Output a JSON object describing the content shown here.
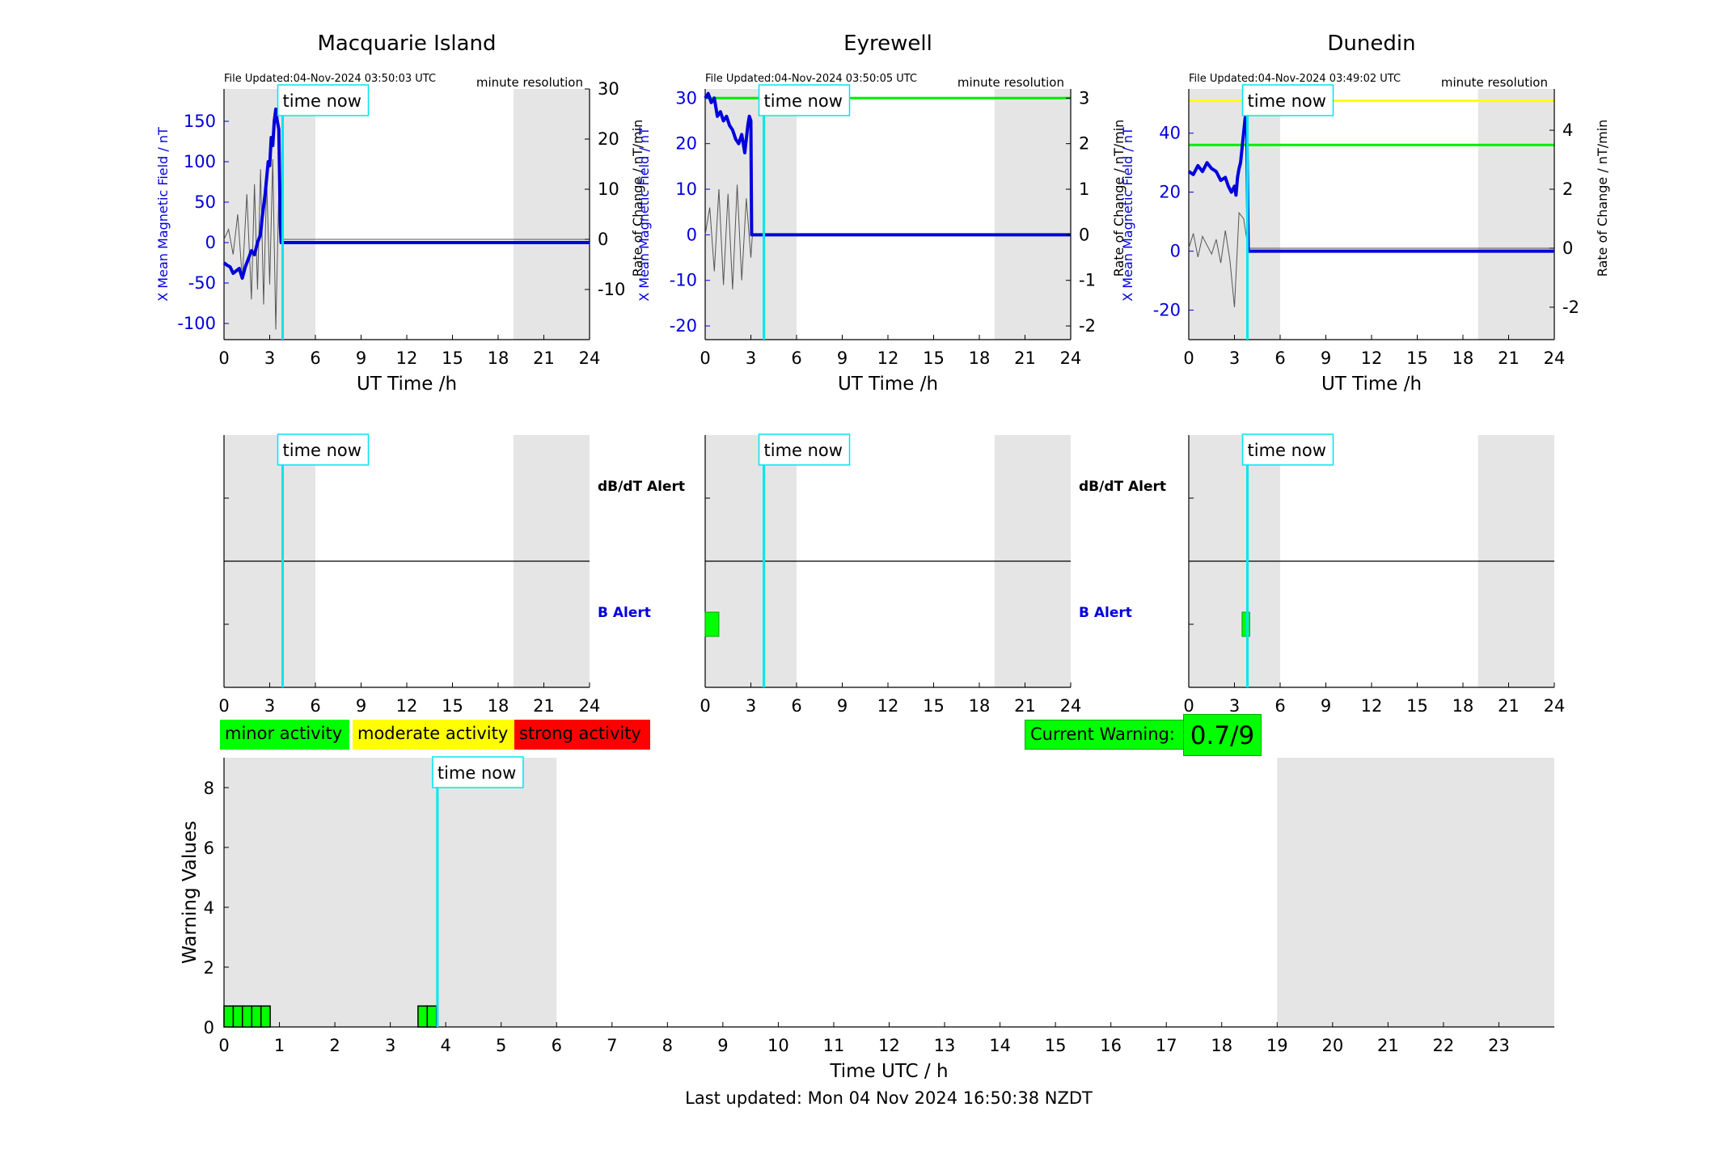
{
  "stations": [
    {
      "title": "Macquarie Island",
      "file_updated": "File Updated:04-Nov-2024 03:50:03 UTC",
      "resolution": "minute resolution",
      "ylabel": "X Mean Magnetic Field / nT",
      "y2label": "Rate of Change / nT/min",
      "xlabel": "UT Time /h",
      "time_now": "time now",
      "dbdt_alert_label": "dB/dT Alert",
      "b_alert_label": "B Alert"
    },
    {
      "title": "Eyrewell",
      "file_updated": "File Updated:04-Nov-2024 03:50:05 UTC",
      "resolution": "minute resolution",
      "ylabel": "X Mean Magnetic Field / nT",
      "y2label": "Rate of Change / nT/min",
      "xlabel": "UT Time /h",
      "time_now": "time now",
      "dbdt_alert_label": "dB/dT Alert",
      "b_alert_label": "B Alert"
    },
    {
      "title": "Dunedin",
      "file_updated": "File Updated:04-Nov-2024 03:49:02 UTC",
      "resolution": "minute resolution",
      "ylabel": "X Mean Magnetic Field / nT",
      "y2label": "Rate of Change / nT/min",
      "xlabel": "UT Time /h",
      "time_now": "time now"
    }
  ],
  "legend": {
    "minor": "minor activity",
    "moderate": "moderate activity",
    "strong": "strong activity"
  },
  "current_warning": {
    "label": "Current Warning:",
    "value": "0.7/9"
  },
  "footer": {
    "last_updated": "Last updated: Mon 04 Nov 2024 16:50:38 NZDT"
  },
  "colors": {
    "field": "#0000dd",
    "rate": "#555555",
    "now": "#00e5ee",
    "shade": "#e5e5e5",
    "minor": "#00ff00",
    "moderate": "#ffff00",
    "strong": "#ff0000",
    "threshold_green": "#00ee00",
    "threshold_yellow": "#ffff00"
  },
  "chart_data": [
    {
      "type": "line",
      "station": "Macquarie Island",
      "x_ticks": [
        0,
        3,
        6,
        9,
        12,
        15,
        18,
        21,
        24
      ],
      "xlim": [
        0,
        24
      ],
      "ylim": [
        -120,
        190
      ],
      "y_ticks": [
        -100,
        -50,
        0,
        50,
        100,
        150
      ],
      "y2lim": [
        -20,
        30
      ],
      "y2_ticks": [
        -10,
        0,
        10,
        20,
        30
      ],
      "y2_tick_labels": [
        "-10",
        "0",
        "10",
        "20",
        "30"
      ],
      "shaded_hours": [
        [
          0,
          6
        ],
        [
          19,
          24
        ]
      ],
      "time_now": 3.85,
      "thresholds": [],
      "series": [
        {
          "role": "field",
          "x": [
            0,
            0.2,
            0.4,
            0.6,
            0.8,
            1.0,
            1.2,
            1.4,
            1.6,
            1.8,
            2.0,
            2.2,
            2.4,
            2.5,
            2.7,
            2.9,
            3.0,
            3.1,
            3.2,
            3.3,
            3.4,
            3.5,
            3.6,
            3.7,
            3.75,
            3.8,
            4,
            24
          ],
          "y": [
            -25,
            -28,
            -30,
            -38,
            -35,
            -32,
            -44,
            -30,
            -20,
            -10,
            -15,
            0,
            10,
            30,
            60,
            100,
            95,
            130,
            120,
            150,
            165,
            150,
            140,
            20,
            0,
            0,
            0,
            0
          ]
        },
        {
          "role": "rate",
          "x": [
            0,
            0.3,
            0.6,
            0.9,
            1.2,
            1.5,
            1.8,
            2.0,
            2.2,
            2.4,
            2.6,
            2.8,
            3.0,
            3.2,
            3.4,
            3.6,
            3.8,
            24
          ],
          "y": [
            0,
            2,
            -3,
            5,
            -8,
            9,
            -12,
            11,
            -10,
            14,
            -13,
            12,
            -9,
            16,
            -18,
            10,
            0,
            0
          ]
        }
      ]
    },
    {
      "type": "line",
      "station": "Eyrewell",
      "x_ticks": [
        0,
        3,
        6,
        9,
        12,
        15,
        18,
        21,
        24
      ],
      "xlim": [
        0,
        24
      ],
      "ylim": [
        -23,
        32
      ],
      "y_ticks": [
        -20,
        -10,
        0,
        10,
        20,
        30
      ],
      "y2lim": [
        -2.3,
        3.2
      ],
      "y2_ticks": [
        -2,
        -1,
        0,
        1,
        2,
        3
      ],
      "y2_tick_labels": [
        "-2",
        "-1",
        "0",
        "1",
        "2",
        "3"
      ],
      "shaded_hours": [
        [
          0,
          6
        ],
        [
          19,
          24
        ]
      ],
      "time_now": 3.85,
      "thresholds": [
        {
          "axis": "y2",
          "value": 3.0,
          "color": "#00ee00"
        }
      ],
      "series": [
        {
          "role": "field",
          "x": [
            0,
            0.2,
            0.4,
            0.6,
            0.8,
            1.0,
            1.2,
            1.4,
            1.6,
            1.8,
            2.0,
            2.2,
            2.4,
            2.6,
            2.8,
            2.9,
            3.0,
            3.05,
            3.1,
            24
          ],
          "y": [
            30,
            31,
            29,
            30,
            26,
            27,
            25,
            26,
            24,
            23,
            21,
            20,
            22,
            18,
            24,
            26,
            25,
            0,
            0,
            0
          ]
        },
        {
          "role": "rate",
          "x": [
            0,
            0.3,
            0.6,
            0.9,
            1.2,
            1.5,
            1.8,
            2.1,
            2.4,
            2.7,
            3.0,
            3.1,
            24
          ],
          "y": [
            0,
            0.6,
            -0.8,
            1.0,
            -1.1,
            0.9,
            -1.2,
            1.1,
            -1.0,
            0.8,
            -0.5,
            0,
            0
          ]
        }
      ]
    },
    {
      "type": "line",
      "station": "Dunedin",
      "x_ticks": [
        0,
        3,
        6,
        9,
        12,
        15,
        18,
        21,
        24
      ],
      "xlim": [
        0,
        24
      ],
      "ylim": [
        -30,
        55
      ],
      "y_ticks": [
        -20,
        0,
        20,
        40
      ],
      "y2lim": [
        -3.1,
        5.4
      ],
      "y2_ticks": [
        -2,
        0,
        2,
        4
      ],
      "y2_tick_labels": [
        "-2",
        "0",
        "2",
        "4"
      ],
      "shaded_hours": [
        [
          0,
          6
        ],
        [
          19,
          24
        ]
      ],
      "time_now": 3.85,
      "thresholds": [
        {
          "axis": "y2",
          "value": 5.0,
          "color": "#ffff00"
        },
        {
          "axis": "y2",
          "value": 3.5,
          "color": "#00ee00"
        }
      ],
      "series": [
        {
          "role": "field",
          "x": [
            0,
            0.3,
            0.6,
            0.9,
            1.2,
            1.5,
            1.8,
            2.1,
            2.4,
            2.6,
            2.8,
            3.0,
            3.1,
            3.2,
            3.3,
            3.4,
            3.5,
            3.6,
            3.7,
            3.8,
            3.9,
            4.0,
            24
          ],
          "y": [
            27,
            26,
            29,
            27,
            30,
            28,
            27,
            24,
            25,
            22,
            20,
            22,
            19,
            25,
            28,
            30,
            35,
            40,
            45,
            48,
            0,
            0,
            0
          ]
        },
        {
          "role": "rate",
          "x": [
            0,
            0.3,
            0.6,
            0.9,
            1.2,
            1.5,
            1.8,
            2.1,
            2.4,
            2.7,
            3.0,
            3.3,
            3.6,
            3.9,
            24
          ],
          "y": [
            0,
            0.5,
            -0.3,
            0.4,
            0.1,
            -0.2,
            0.3,
            -0.5,
            0.6,
            -0.4,
            -2.0,
            1.2,
            1.0,
            0,
            0
          ]
        }
      ]
    },
    {
      "type": "bar",
      "panel": "alerts",
      "station": "Macquarie Island",
      "x_ticks": [
        0,
        3,
        6,
        9,
        12,
        15,
        18,
        21,
        24
      ],
      "xlim": [
        0,
        24
      ],
      "shaded_hours": [
        [
          0,
          6
        ],
        [
          19,
          24
        ]
      ],
      "time_now": 3.85,
      "dbdt_alert_intervals": [],
      "b_alert_intervals": []
    },
    {
      "type": "bar",
      "panel": "alerts",
      "station": "Eyrewell",
      "x_ticks": [
        0,
        3,
        6,
        9,
        12,
        15,
        18,
        21,
        24
      ],
      "xlim": [
        0,
        24
      ],
      "shaded_hours": [
        [
          0,
          6
        ],
        [
          19,
          24
        ]
      ],
      "time_now": 3.85,
      "dbdt_alert_intervals": [],
      "b_alert_intervals": [
        [
          0,
          0.9
        ]
      ]
    },
    {
      "type": "bar",
      "panel": "alerts",
      "station": "Dunedin",
      "x_ticks": [
        0,
        3,
        6,
        9,
        12,
        15,
        18,
        21,
        24
      ],
      "xlim": [
        0,
        24
      ],
      "shaded_hours": [
        [
          0,
          6
        ],
        [
          19,
          24
        ]
      ],
      "time_now": 3.85,
      "dbdt_alert_intervals": [],
      "b_alert_intervals": [
        [
          3.5,
          4.0
        ]
      ]
    },
    {
      "type": "bar",
      "panel": "warning",
      "title": "",
      "xlabel": "Time UTC / h",
      "ylabel": "Warning Values",
      "xlim": [
        0,
        24
      ],
      "x_ticks": [
        0,
        1,
        2,
        3,
        4,
        5,
        6,
        7,
        8,
        9,
        10,
        11,
        12,
        13,
        14,
        15,
        16,
        17,
        18,
        19,
        20,
        21,
        22,
        23
      ],
      "ylim": [
        0,
        9
      ],
      "y_ticks": [
        0,
        2,
        4,
        6,
        8
      ],
      "shaded_hours": [
        [
          0,
          6
        ],
        [
          19,
          24
        ]
      ],
      "time_now": 3.85,
      "time_now_label": "time now",
      "bars": [
        {
          "start": 0.0,
          "end": 0.167,
          "value": 0.7
        },
        {
          "start": 0.167,
          "end": 0.333,
          "value": 0.7
        },
        {
          "start": 0.333,
          "end": 0.5,
          "value": 0.7
        },
        {
          "start": 0.5,
          "end": 0.667,
          "value": 0.7
        },
        {
          "start": 0.667,
          "end": 0.833,
          "value": 0.7
        },
        {
          "start": 3.5,
          "end": 3.667,
          "value": 0.7
        },
        {
          "start": 3.667,
          "end": 3.833,
          "value": 0.7
        }
      ]
    }
  ]
}
